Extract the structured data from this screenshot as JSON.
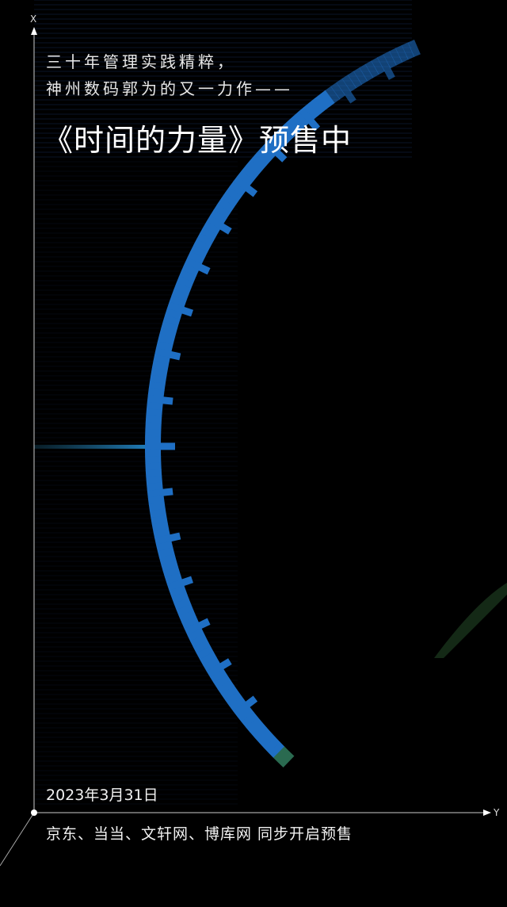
{
  "headline": {
    "line1": "三十年管理实践精粹，",
    "line2": "神州数码郭为的又一力作——",
    "title": "《时间的力量》预售中"
  },
  "date": "2023年3月31日",
  "channels": "京东、当当、文轩网、博库网 同步开启预售",
  "axes": {
    "x_label": "X",
    "y_label": "Y"
  },
  "colors": {
    "background": "#000000",
    "ticks": "#1f6fc4",
    "ticks_fade": "#2a6a50",
    "text": "#f2f2f2"
  }
}
